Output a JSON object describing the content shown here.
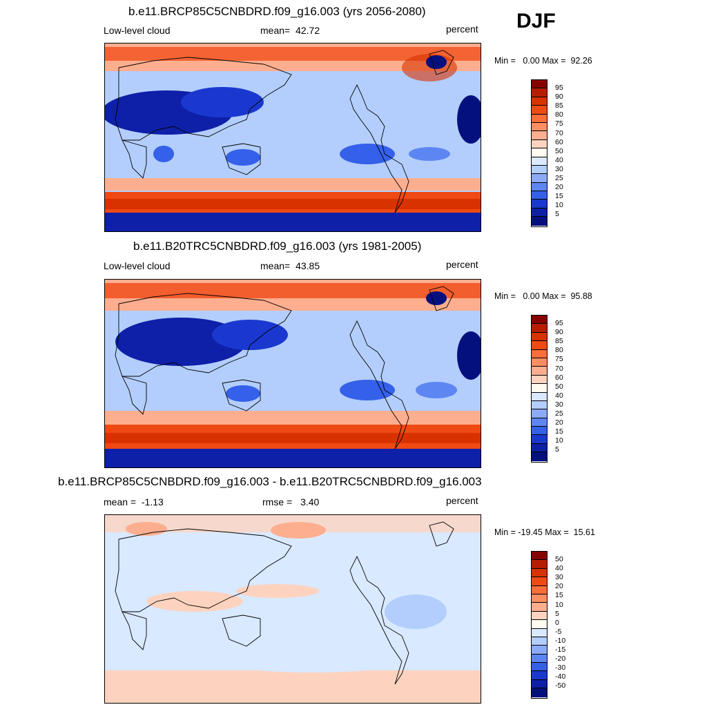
{
  "season": "DJF",
  "panels": [
    {
      "title": "b.e11.BRCP85C5CNBDRD.f09_g16.003 (yrs 2056-2080)",
      "left": "Low-level cloud",
      "center_label": "mean=",
      "center_value": "42.72",
      "units": "percent",
      "minmax": "Min =   0.00 Max =  92.26",
      "colorbar": {
        "labels": [
          "95",
          "90",
          "85",
          "80",
          "75",
          "70",
          "60",
          "50",
          "40",
          "30",
          "25",
          "20",
          "15",
          "10",
          "5"
        ],
        "colors": [
          "#870000",
          "#b71b00",
          "#d83200",
          "#ef4a14",
          "#fc6d3a",
          "#fd8d62",
          "#fdae8f",
          "#fdd3bf",
          "#fffbf0",
          "#d9e9ff",
          "#b3cefc",
          "#8baaf8",
          "#5e86f3",
          "#3560ea",
          "#1a38cf",
          "#0e1fa8",
          "#04107e"
        ]
      },
      "map_shown": "filled contour map of low-level cloud over world continents"
    },
    {
      "title": "b.e11.B20TRC5CNBDRD.f09_g16.003 (yrs 1981-2005)",
      "left": "Low-level cloud",
      "center_label": "mean=",
      "center_value": "43.85",
      "units": "percent",
      "minmax": "Min =   0.00 Max =  95.88",
      "colorbar": {
        "labels": [
          "95",
          "90",
          "85",
          "80",
          "75",
          "70",
          "60",
          "50",
          "40",
          "30",
          "25",
          "20",
          "15",
          "10",
          "5"
        ],
        "colors": [
          "#870000",
          "#b71b00",
          "#d83200",
          "#ef4a14",
          "#fc6d3a",
          "#fd8d62",
          "#fdae8f",
          "#fdd3bf",
          "#fffbf0",
          "#d9e9ff",
          "#b3cefc",
          "#8baaf8",
          "#5e86f3",
          "#3560ea",
          "#1a38cf",
          "#0e1fa8",
          "#04107e"
        ]
      },
      "map_shown": "filled contour map of low-level cloud over world continents"
    },
    {
      "title": "b.e11.BRCP85C5CNBDRD.f09_g16.003 - b.e11.B20TRC5CNBDRD.f09_g16.003",
      "left": "mean =  -1.13",
      "center_label": "rmse =",
      "center_value": "3.40",
      "units": "percent",
      "minmax": "Min = -19.45 Max =  15.61",
      "colorbar": {
        "labels": [
          "50",
          "40",
          "30",
          "20",
          "15",
          "10",
          "5",
          "0",
          "-5",
          "-10",
          "-15",
          "-20",
          "-30",
          "-40",
          "-50"
        ],
        "colors": [
          "#870000",
          "#b71b00",
          "#d83200",
          "#ef4a14",
          "#fc6d3a",
          "#fd8d62",
          "#fdae8f",
          "#fdd3bf",
          "#fffbf0",
          "#d9e9ff",
          "#b3cefc",
          "#8baaf8",
          "#5e86f3",
          "#3560ea",
          "#1a38cf",
          "#0e1fa8",
          "#04107e"
        ]
      },
      "map_shown": "difference map, mostly pale blue/pale orange"
    }
  ]
}
